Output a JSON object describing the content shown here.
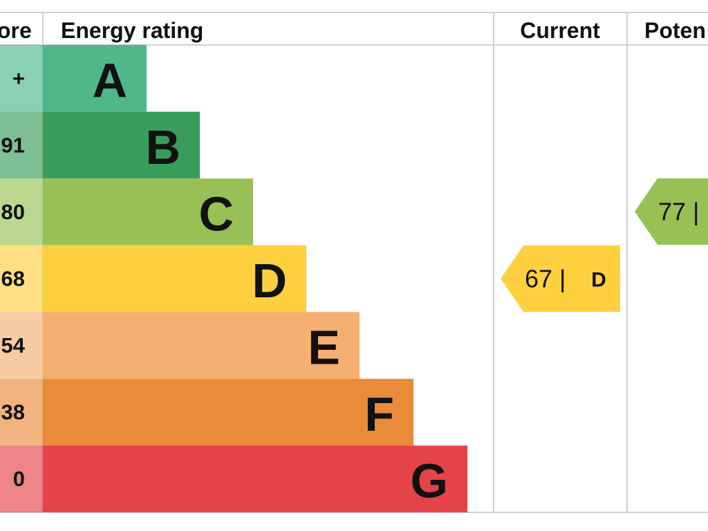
{
  "header": {
    "score": "ore",
    "rating": "Energy rating",
    "current": "Current",
    "potential": "Poten"
  },
  "bands": [
    {
      "score": "+",
      "letter": "A"
    },
    {
      "score": "91",
      "letter": "B"
    },
    {
      "score": "80",
      "letter": "C"
    },
    {
      "score": "68",
      "letter": "D"
    },
    {
      "score": "54",
      "letter": "E"
    },
    {
      "score": "38",
      "letter": "F"
    },
    {
      "score": "0",
      "letter": "G"
    }
  ],
  "current": {
    "value": "67 |",
    "band": "D"
  },
  "potential": {
    "value": "77 |"
  }
}
